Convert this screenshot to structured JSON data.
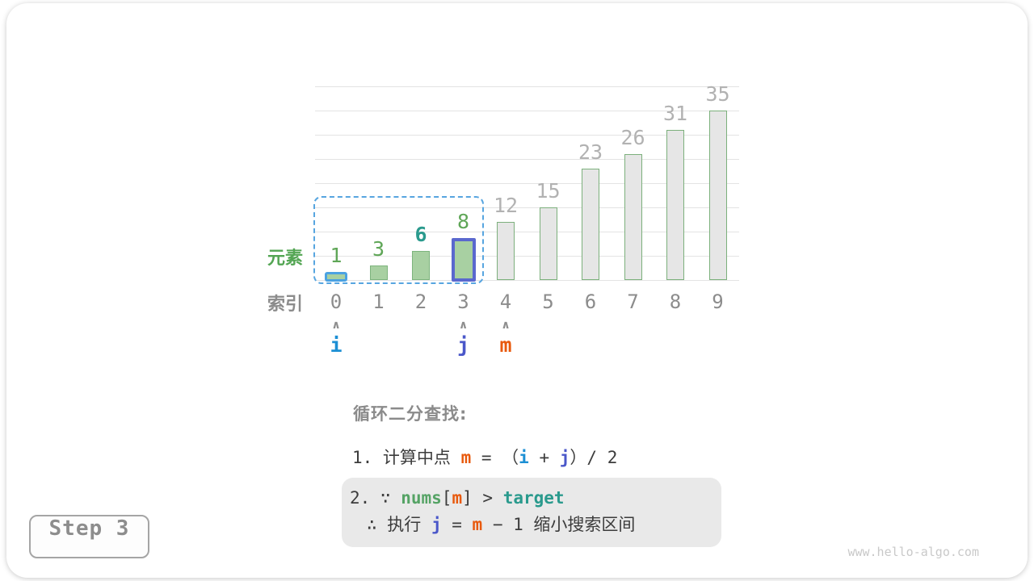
{
  "step_badge": {
    "label": "Step 3"
  },
  "watermark": "www.hello-algo.com",
  "axis_labels": {
    "elements": "元素",
    "indices": "索引"
  },
  "chart_data": {
    "type": "bar",
    "categories": [
      0,
      1,
      2,
      3,
      4,
      5,
      6,
      7,
      8,
      9
    ],
    "values": [
      1,
      3,
      6,
      8,
      12,
      15,
      23,
      26,
      31,
      35
    ],
    "ylim": [
      0,
      40
    ],
    "gridline_step": 5,
    "grid": true,
    "legend": "none",
    "bar_styles": [
      "highlight-i",
      "in-range",
      "in-range",
      "highlight-j",
      "out",
      "out",
      "out",
      "out",
      "out",
      "out"
    ],
    "value_label_styles": [
      "green",
      "green",
      "target",
      "green",
      "gray",
      "gray",
      "gray",
      "gray",
      "gray",
      "gray"
    ],
    "search_range": {
      "start_index": 0,
      "end_index": 3
    },
    "pointers": [
      {
        "label": "i",
        "index": 0,
        "style": "i"
      },
      {
        "label": "j",
        "index": 3,
        "style": "j"
      },
      {
        "label": "m",
        "index": 4,
        "style": "m"
      }
    ],
    "pointer_caret": "∧",
    "target_value": 6
  },
  "explanation": {
    "heading": "循环二分查找:",
    "step1_tokens": [
      {
        "text": "1. 计算中点 "
      },
      {
        "text": "m",
        "style": "m"
      },
      {
        "text": " = （"
      },
      {
        "text": "i",
        "style": "i"
      },
      {
        "text": " + "
      },
      {
        "text": "j",
        "style": "j"
      },
      {
        "text": "）/ 2"
      }
    ],
    "step2_line1_tokens": [
      {
        "text": "2. ∵ "
      },
      {
        "text": "nums",
        "style": "nums"
      },
      {
        "text": "["
      },
      {
        "text": "m",
        "style": "m"
      },
      {
        "text": "] > "
      },
      {
        "text": "target",
        "style": "target"
      }
    ],
    "step2_line2_tokens": [
      {
        "text": "∴ 执行 "
      },
      {
        "text": "j",
        "style": "j"
      },
      {
        "text": " = "
      },
      {
        "text": "m",
        "style": "m"
      },
      {
        "text": " − 1 缩小搜索区间"
      }
    ]
  },
  "colors": {
    "i": "#1c8fd4",
    "j": "#4a57c9",
    "m": "#e8590c",
    "nums": "#55a365",
    "target": "#2a9a8d",
    "green-text": "#5fa657",
    "gray-label": "#b2b2b2",
    "index-text": "#8c8c8c",
    "caret": "#8e8e8e",
    "heading": "#8b8b8b",
    "dark-text": "#3c3c3c",
    "bar-green": "#a8d0a2",
    "bar-green-border": "#7db47d",
    "bar-gray": "#e6e6e6",
    "bar-gray-border": "#7cb07c",
    "grid": "#e3e3e3",
    "range-dash": "#57a5e0",
    "i-border": "#4ba2e2",
    "j-border": "#5a68ce",
    "box-bg": "#e9e9e9",
    "step-border": "#a5a5a5",
    "step-text": "#8d8d8d",
    "watermark": "#c9c9c9",
    "elements-label": "#53a553"
  }
}
